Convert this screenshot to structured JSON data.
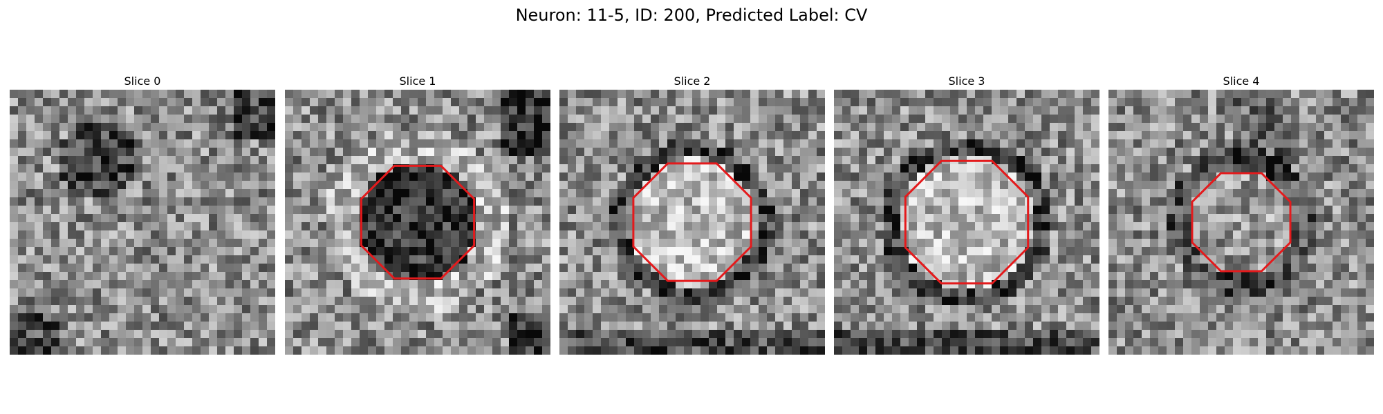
{
  "figure": {
    "title": "Neuron: 11-5, ID: 200, Predicted Label: CV"
  },
  "colors": {
    "roi_outline": "#e41a1c",
    "colormap": "gray"
  },
  "panels": [
    {
      "label": "Slice 0",
      "has_roi": false,
      "roi_radius": 0,
      "seed": 11,
      "pattern": "tissue-dark-blob"
    },
    {
      "label": "Slice 1",
      "has_roi": true,
      "roi_radius": 0.23,
      "seed": 23,
      "pattern": "dark-cell"
    },
    {
      "label": "Slice 2",
      "has_roi": true,
      "roi_radius": 0.24,
      "seed": 37,
      "pattern": "bright-cell"
    },
    {
      "label": "Slice 3",
      "has_roi": true,
      "roi_radius": 0.25,
      "seed": 53,
      "pattern": "bright-cell"
    },
    {
      "label": "Slice 4",
      "has_roi": true,
      "roi_radius": 0.2,
      "seed": 71,
      "pattern": "speckle-cell"
    }
  ]
}
